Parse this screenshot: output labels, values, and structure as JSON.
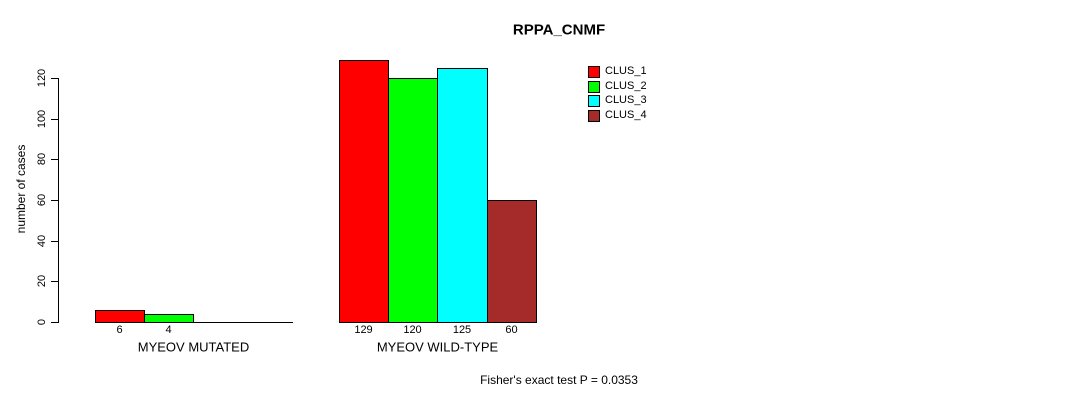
{
  "chart_data": {
    "type": "bar",
    "title": "RPPA_CNMF",
    "xlabel": "",
    "ylabel": "number of cases",
    "ylim": [
      0,
      129
    ],
    "yticks": [
      0,
      20,
      40,
      60,
      80,
      100,
      120
    ],
    "grid": false,
    "legend_position": "top-right-outside",
    "series": [
      {
        "name": "CLUS_1",
        "color": "#FF0000"
      },
      {
        "name": "CLUS_2",
        "color": "#00FF00"
      },
      {
        "name": "CLUS_3",
        "color": "#00FFFF"
      },
      {
        "name": "CLUS_4",
        "color": "#A52A2A"
      }
    ],
    "groups": [
      {
        "label": "MYEOV MUTATED",
        "values": [
          6,
          4,
          0,
          0
        ],
        "value_labels": [
          "6",
          "4",
          "",
          ""
        ]
      },
      {
        "label": "MYEOV WILD-TYPE",
        "values": [
          129,
          120,
          125,
          60
        ],
        "value_labels": [
          "129",
          "120",
          "125",
          "60"
        ]
      }
    ],
    "annotation": "Fisher's exact test P = 0.0353"
  }
}
